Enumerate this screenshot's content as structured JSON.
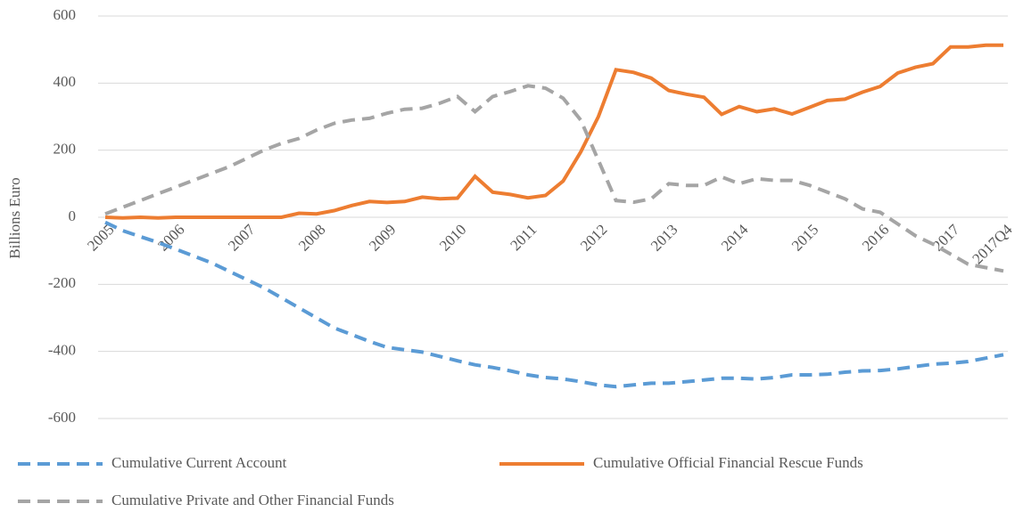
{
  "chart_data": {
    "type": "line",
    "y_label": "Billions Euro",
    "categories": [
      "2005",
      null,
      null,
      null,
      "2006",
      null,
      null,
      null,
      "2007",
      null,
      null,
      null,
      "2008",
      null,
      null,
      null,
      "2009",
      null,
      null,
      null,
      "2010",
      null,
      null,
      null,
      "2011",
      null,
      null,
      null,
      "2012",
      null,
      null,
      null,
      "2013",
      null,
      null,
      null,
      "2014",
      null,
      null,
      null,
      "2015",
      null,
      null,
      null,
      "2016",
      null,
      null,
      null,
      "2017",
      null,
      null,
      "2017Q4"
    ],
    "series": [
      {
        "name": "Cumulative Current Account",
        "color": "#5b9bd5",
        "dash": true,
        "values": [
          -15,
          -40,
          -58,
          -75,
          -95,
          -115,
          -135,
          -160,
          -185,
          -210,
          -240,
          -270,
          -300,
          -330,
          -350,
          -370,
          -388,
          -395,
          -402,
          -415,
          -428,
          -440,
          -448,
          -458,
          -470,
          -478,
          -482,
          -490,
          -500,
          -505,
          -500,
          -495,
          -495,
          -490,
          -485,
          -480,
          -480,
          -482,
          -478,
          -470,
          -470,
          -468,
          -462,
          -458,
          -457,
          -452,
          -445,
          -438,
          -435,
          -430,
          -420,
          -410
        ]
      },
      {
        "name": "Cumulative Official Financial Rescue Funds",
        "color": "#ed7d31",
        "dash": false,
        "values": [
          0,
          -2,
          0,
          -2,
          0,
          0,
          0,
          0,
          0,
          0,
          0,
          12,
          10,
          20,
          35,
          47,
          44,
          47,
          60,
          55,
          57,
          122,
          75,
          68,
          58,
          65,
          108,
          195,
          300,
          440,
          432,
          415,
          378,
          367,
          358,
          307,
          330,
          315,
          323,
          308,
          328,
          348,
          352,
          373,
          390,
          430,
          447,
          458,
          508,
          508,
          513,
          513
        ]
      },
      {
        "name": "Cumulative Private and Other Financial Funds",
        "color": "#a5a5a5",
        "dash": true,
        "values": [
          10,
          30,
          50,
          70,
          90,
          110,
          130,
          150,
          175,
          200,
          220,
          235,
          260,
          280,
          290,
          295,
          310,
          322,
          325,
          340,
          360,
          315,
          360,
          375,
          392,
          385,
          355,
          290,
          170,
          50,
          45,
          55,
          100,
          95,
          95,
          120,
          100,
          115,
          110,
          110,
          95,
          75,
          55,
          25,
          15,
          -20,
          -55,
          -80,
          -110,
          -140,
          -150,
          -160
        ]
      }
    ],
    "ylim": [
      -600,
      600
    ],
    "yticks": [
      -600,
      -400,
      -200,
      0,
      200,
      400,
      600
    ],
    "grid": true
  }
}
